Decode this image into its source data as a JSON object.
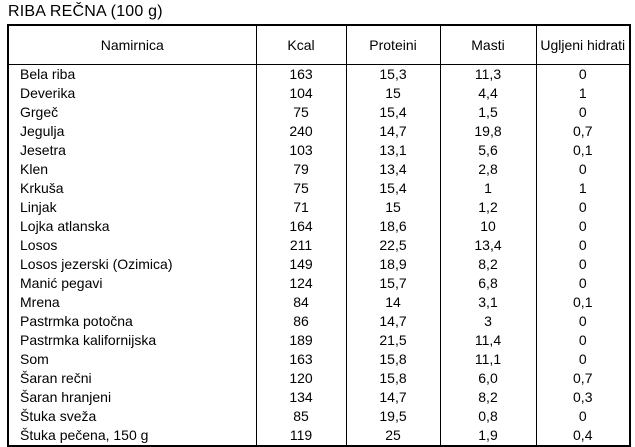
{
  "title": "RIBA REČNA (100 g)",
  "table": {
    "columns": [
      "Namirnica",
      "Kcal",
      "Proteini",
      "Masti",
      "Ugljeni hidrati"
    ],
    "rows": [
      [
        "Bela riba",
        "163",
        "15,3",
        "11,3",
        "0"
      ],
      [
        "Deverika",
        "104",
        "15",
        "4,4",
        "1"
      ],
      [
        "Grgeč",
        "75",
        "15,4",
        "1,5",
        "0"
      ],
      [
        "Jegulja",
        "240",
        "14,7",
        "19,8",
        "0,7"
      ],
      [
        "Jesetra",
        "103",
        "13,1",
        "5,6",
        "0,1"
      ],
      [
        "Klen",
        "79",
        "13,4",
        "2,8",
        "0"
      ],
      [
        "Krkuša",
        "75",
        "15,4",
        "1",
        "1"
      ],
      [
        "Linjak",
        "71",
        "15",
        "1,2",
        "0"
      ],
      [
        "Lojka atlanska",
        "164",
        "18,6",
        "10",
        "0"
      ],
      [
        "Losos",
        "211",
        "22,5",
        "13,4",
        "0"
      ],
      [
        "Losos jezerski (Ozimica)",
        "149",
        "18,9",
        "8,2",
        "0"
      ],
      [
        "Manić pegavi",
        "124",
        "15,7",
        "6,8",
        "0"
      ],
      [
        "Mrena",
        "84",
        "14",
        "3,1",
        "0,1"
      ],
      [
        "Pastrmka potočna",
        "86",
        "14,7",
        "3",
        "0"
      ],
      [
        "Pastrmka kalifornijska",
        "189",
        "21,5",
        "11,4",
        "0"
      ],
      [
        "Som",
        "163",
        "15,8",
        "11,1",
        "0"
      ],
      [
        "Šaran rečni",
        "120",
        "15,8",
        "6,0",
        "0,7"
      ],
      [
        "Šaran hranjeni",
        "134",
        "14,7",
        "8,2",
        "0,3"
      ],
      [
        "Štuka sveža",
        "85",
        "19,5",
        "0,8",
        "0"
      ],
      [
        "Štuka pečena, 150 g",
        "119",
        "25",
        "1,9",
        "0,4"
      ]
    ]
  }
}
